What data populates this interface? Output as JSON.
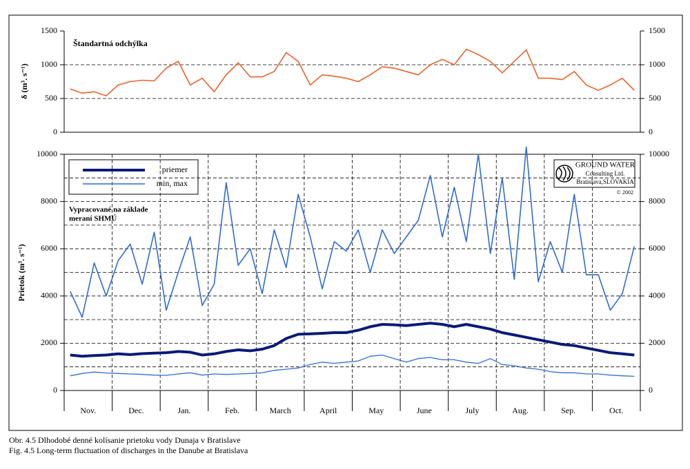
{
  "chart_data": [
    {
      "type": "line",
      "title": "Štandartná odchýlka",
      "ylabel": "δ (m³. s⁻¹)",
      "ylim": [
        0,
        1500
      ],
      "yticks": [
        0,
        500,
        1000,
        1500
      ],
      "ygrid": [
        500,
        1000
      ],
      "series": [
        {
          "color": "#e8622a",
          "values": [
            640,
            580,
            600,
            540,
            700,
            750,
            770,
            760,
            950,
            1050,
            700,
            800,
            600,
            850,
            1030,
            820,
            820,
            900,
            1180,
            1050,
            700,
            850,
            830,
            800,
            750,
            850,
            970,
            950,
            900,
            850,
            1000,
            1080,
            1000,
            1230,
            1150,
            1050,
            880,
            1050,
            1220,
            800,
            800,
            780,
            900,
            700,
            620,
            700,
            800,
            620
          ]
        }
      ]
    },
    {
      "type": "line",
      "ylabel": "Prietok (m³. s⁻¹)",
      "x_labels": [
        "Nov.",
        "Dec.",
        "Jan.",
        "Feb.",
        "March",
        "April",
        "May",
        "June",
        "July",
        "Aug.",
        "Sep.",
        "Oct."
      ],
      "ylim": [
        0,
        10000
      ],
      "yticks": [
        0,
        2000,
        4000,
        6000,
        8000,
        10000
      ],
      "ygrid": [
        1000,
        2000,
        3000,
        4000,
        5000,
        6000,
        7000,
        8000,
        9000
      ],
      "annotation": [
        "Vypracované na základe",
        "meraní SHMÚ"
      ],
      "logo": [
        "GROUND WATER",
        "Consulting Ltd.",
        "Bratislava,SLOVAKIA",
        "© 2002"
      ],
      "series": [
        {
          "name": "priemer",
          "color": "#0a1a78",
          "values": [
            1500,
            1450,
            1480,
            1500,
            1550,
            1520,
            1560,
            1580,
            1600,
            1650,
            1620,
            1500,
            1550,
            1650,
            1720,
            1680,
            1750,
            1900,
            2200,
            2380,
            2400,
            2420,
            2450,
            2450,
            2550,
            2700,
            2800,
            2780,
            2750,
            2800,
            2850,
            2800,
            2700,
            2800,
            2700,
            2600,
            2450,
            2350,
            2250,
            2150,
            2050,
            1950,
            1900,
            1800,
            1700,
            1600,
            1550,
            1500
          ]
        },
        {
          "name": "min, max",
          "color": "#2f6bd2",
          "max": [
            4200,
            3100,
            5400,
            4000,
            5500,
            6200,
            4500,
            6700,
            3400,
            5000,
            6500,
            3600,
            4500,
            8800,
            5300,
            6000,
            4100,
            6800,
            5200,
            8300,
            6500,
            4300,
            6300,
            5900,
            6800,
            5000,
            6800,
            5800,
            6500,
            7200,
            9100,
            6500,
            8600,
            6300,
            10000,
            5800,
            9000,
            4700,
            10300,
            4600,
            6300,
            5000,
            8300,
            4900,
            4900,
            3400,
            4100,
            6100
          ],
          "min": [
            620,
            720,
            780,
            740,
            720,
            700,
            680,
            650,
            640,
            700,
            750,
            650,
            700,
            680,
            700,
            720,
            750,
            850,
            900,
            950,
            1100,
            1200,
            1150,
            1200,
            1250,
            1450,
            1500,
            1350,
            1200,
            1350,
            1400,
            1300,
            1300,
            1200,
            1150,
            1350,
            1100,
            1050,
            950,
            900,
            800,
            750,
            750,
            700,
            700,
            650,
            620,
            600
          ]
        }
      ]
    }
  ],
  "captions": [
    "Obr. 4.5  Dlhodobé denné kolísanie prietoku vody Dunaja v Bratislave",
    "Fig. 4.5  Long-term fluctuation of discharges in the Danube at Bratislava"
  ]
}
